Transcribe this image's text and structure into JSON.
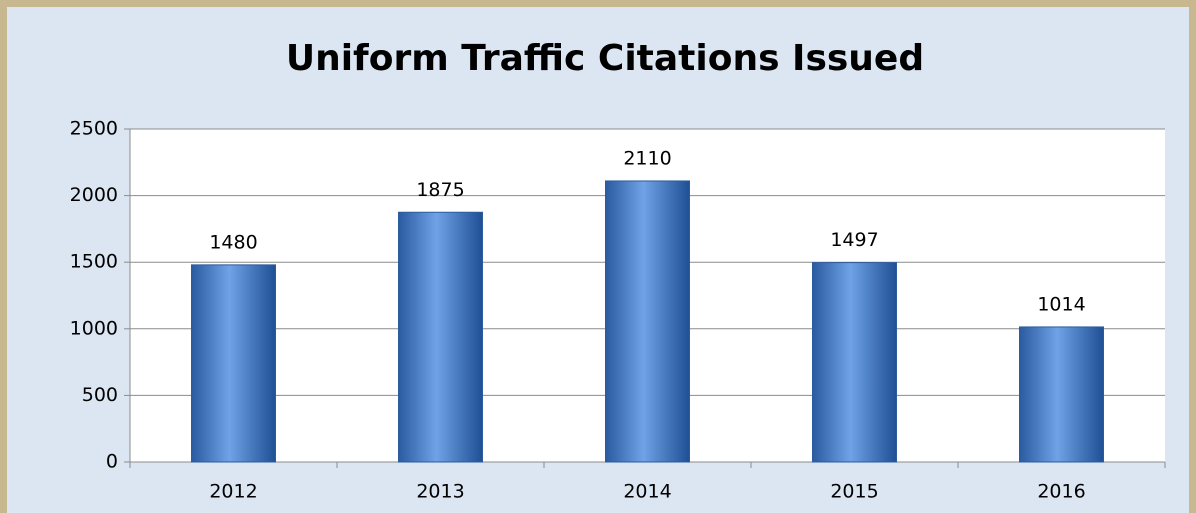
{
  "chart_data": {
    "type": "bar",
    "title": "Uniform Traffic Citations Issued",
    "categories": [
      "2012",
      "2013",
      "2014",
      "2015",
      "2016"
    ],
    "values": [
      1480,
      1875,
      2110,
      1497,
      1014
    ],
    "color": "#3a75c4",
    "ylim": [
      0,
      2500
    ],
    "yticks": [
      0,
      500,
      1000,
      1500,
      2000,
      2500
    ],
    "grid": true
  }
}
